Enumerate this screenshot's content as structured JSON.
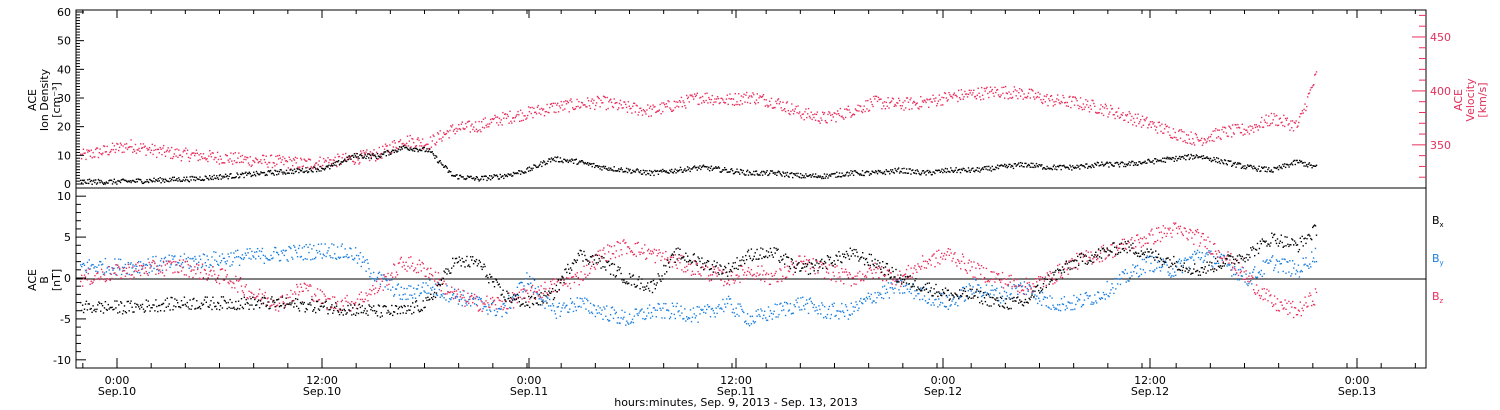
{
  "colors": {
    "black": "#000000",
    "red": "#e8305e",
    "blue": "#1a7fe0"
  },
  "chart_data": [
    {
      "type": "scatter",
      "panel": "top",
      "ylabel_left": [
        "ACE",
        "Ion Density",
        "[cm⁻³]"
      ],
      "ylabel_right": [
        "ACE",
        "Velocity",
        "[km/s]"
      ],
      "ylim_left": [
        0,
        60
      ],
      "ylim_right": [
        310,
        475
      ],
      "left_ticks": [
        "0",
        "10",
        "20",
        "30",
        "40",
        "50",
        "60"
      ],
      "right_ticks": [
        "350",
        "400",
        "450"
      ],
      "series": [
        {
          "axis": "left",
          "color": "black",
          "x": [
            0,
            3,
            6,
            9,
            12,
            15,
            18,
            20,
            22,
            24,
            26,
            28,
            30,
            32,
            34,
            36,
            38,
            40,
            42,
            44,
            46,
            48,
            50,
            52,
            54,
            56,
            58,
            60,
            62,
            64,
            66,
            68,
            70,
            72,
            74,
            76,
            78,
            80,
            82,
            84,
            86,
            88,
            90,
            92,
            94,
            96,
            98,
            99.5
          ],
          "y": [
            1,
            1,
            1.5,
            2,
            3,
            4,
            5,
            6,
            10,
            10,
            13,
            12,
            3,
            2,
            3,
            5,
            9,
            8,
            6,
            5,
            4,
            5,
            6,
            5,
            4,
            4,
            3,
            3,
            4,
            4,
            5,
            4,
            5,
            5,
            6,
            7,
            6,
            6,
            7,
            7,
            8,
            9,
            10,
            8,
            6,
            5,
            8,
            6
          ]
        },
        {
          "axis": "right",
          "color": "red",
          "x": [
            0,
            2,
            4,
            6,
            8,
            10,
            12,
            14,
            16,
            18,
            20,
            22,
            24,
            26,
            28,
            30,
            32,
            34,
            36,
            38,
            40,
            42,
            44,
            46,
            48,
            50,
            52,
            54,
            56,
            58,
            60,
            62,
            64,
            66,
            68,
            70,
            72,
            74,
            76,
            78,
            80,
            82,
            84,
            86,
            88,
            90,
            92,
            94,
            96,
            98,
            99.5
          ],
          "y": [
            340,
            345,
            350,
            345,
            342,
            340,
            338,
            336,
            335,
            333,
            335,
            338,
            342,
            355,
            352,
            365,
            368,
            375,
            380,
            385,
            388,
            390,
            385,
            382,
            388,
            395,
            392,
            395,
            390,
            380,
            375,
            382,
            390,
            388,
            390,
            395,
            398,
            400,
            398,
            392,
            390,
            385,
            378,
            370,
            362,
            355,
            362,
            365,
            375,
            368,
            415
          ]
        }
      ]
    },
    {
      "type": "scatter",
      "panel": "bottom",
      "ylabel_left": [
        "ACE",
        "B",
        "[nT]"
      ],
      "ylim": [
        -11,
        11
      ],
      "left_ticks": [
        "-10",
        "-5",
        "0",
        "5",
        "10"
      ],
      "legend": [
        "Bx",
        "By",
        "Bz"
      ],
      "series": [
        {
          "name": "Bx",
          "color": "black",
          "x": [
            0,
            4,
            8,
            12,
            16,
            20,
            24,
            26,
            28,
            30,
            32,
            34,
            36,
            38,
            40,
            42,
            44,
            46,
            48,
            50,
            52,
            54,
            56,
            58,
            60,
            62,
            64,
            66,
            68,
            70,
            72,
            74,
            76,
            78,
            80,
            82,
            84,
            86,
            88,
            90,
            92,
            94,
            96,
            98,
            99.5
          ],
          "y": [
            -3.5,
            -3.5,
            -3,
            -3,
            -3,
            -3.5,
            -4,
            -4,
            -3,
            2,
            2,
            -2,
            -3,
            -2,
            3,
            2,
            0,
            -1,
            3,
            2,
            1,
            3,
            3,
            1,
            2,
            3,
            2,
            0,
            -1,
            -2,
            -2,
            -3,
            -3,
            0,
            2,
            3,
            4,
            3,
            2,
            1,
            2,
            3,
            5,
            4,
            6
          ]
        },
        {
          "name": "By",
          "color": "blue",
          "x": [
            0,
            4,
            8,
            12,
            16,
            20,
            22,
            24,
            26,
            28,
            30,
            32,
            34,
            36,
            38,
            40,
            42,
            44,
            46,
            48,
            50,
            52,
            54,
            56,
            58,
            60,
            62,
            64,
            66,
            68,
            70,
            72,
            74,
            76,
            78,
            80,
            82,
            84,
            86,
            88,
            90,
            92,
            94,
            96,
            98,
            99.5
          ],
          "y": [
            1.5,
            1.5,
            2,
            2.5,
            3,
            3.5,
            3,
            0,
            -2,
            -1,
            -2,
            -3,
            -4,
            0,
            -4,
            -3,
            -4,
            -5,
            -4,
            -4,
            -4.5,
            -3,
            -5,
            -4,
            -3,
            -4,
            -4,
            -2,
            -1,
            -2,
            -3,
            -1,
            -2,
            -1,
            -3,
            -3,
            -2,
            0,
            2,
            1,
            3,
            2,
            0,
            2,
            1,
            3
          ]
        },
        {
          "name": "Bz",
          "color": "red",
          "x": [
            0,
            4,
            8,
            12,
            14,
            16,
            18,
            20,
            22,
            24,
            26,
            28,
            30,
            32,
            34,
            36,
            38,
            40,
            42,
            44,
            46,
            48,
            50,
            52,
            54,
            56,
            58,
            60,
            62,
            64,
            66,
            68,
            70,
            72,
            74,
            76,
            78,
            80,
            82,
            84,
            86,
            88,
            90,
            92,
            94,
            96,
            98,
            99.5
          ],
          "y": [
            0,
            1,
            1.5,
            0,
            -2,
            -3,
            -1,
            -3,
            -3,
            -1,
            2,
            1,
            -2,
            -3,
            -3,
            -2,
            -1,
            0,
            3,
            4,
            3,
            2,
            1,
            0,
            1,
            0,
            2,
            1,
            0,
            1,
            0,
            2,
            3,
            1,
            0,
            -1,
            0,
            2,
            3,
            4,
            5,
            6,
            5,
            3,
            0,
            -3,
            -4,
            -2
          ]
        }
      ]
    }
  ],
  "x_axis": {
    "tick_times": [
      "0:00",
      "12:00",
      "0:00",
      "12:00",
      "0:00",
      "12:00",
      "0:00"
    ],
    "tick_dates": [
      "Sep.10",
      "Sep.10",
      "Sep.11",
      "Sep.11",
      "Sep.12",
      "Sep.12",
      "Sep.13"
    ],
    "label": "hours:minutes, Sep. 9, 2013 - Sep. 13, 2013"
  }
}
